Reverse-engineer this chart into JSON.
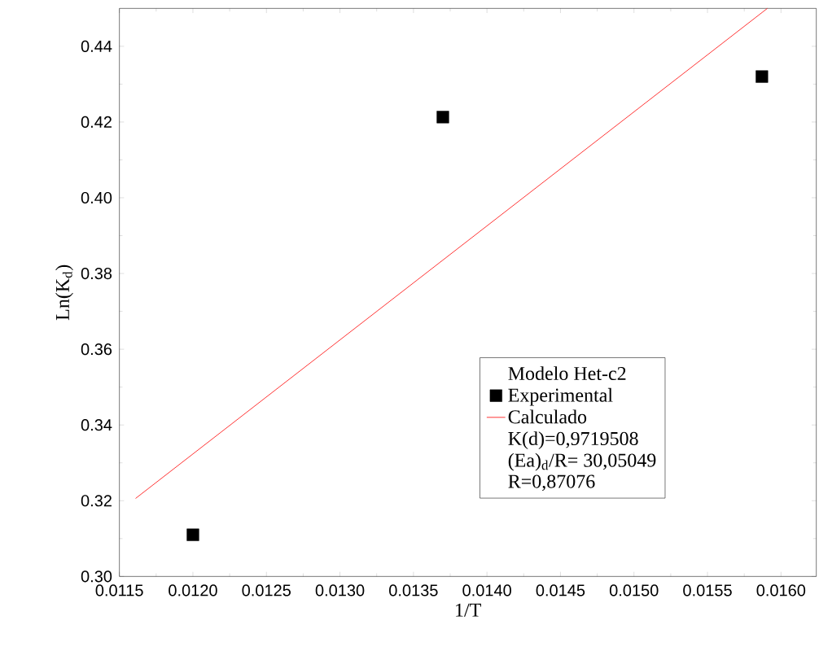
{
  "chart_data": {
    "type": "scatter",
    "xlabel": "1/T",
    "ylabel": "Ln(K$_{d}$)",
    "legend_title": "Modelo Het-c2",
    "xlim": [
      0.0115,
      0.01624
    ],
    "ylim": [
      0.3,
      0.45
    ],
    "xticks": [
      {
        "value": 0.0115,
        "label": "0.0115"
      },
      {
        "value": 0.012,
        "label": "0.0120"
      },
      {
        "value": 0.0125,
        "label": "0.0125"
      },
      {
        "value": 0.013,
        "label": "0.0130"
      },
      {
        "value": 0.0135,
        "label": "0.0135"
      },
      {
        "value": 0.014,
        "label": "0.0140"
      },
      {
        "value": 0.0145,
        "label": "0.0145"
      },
      {
        "value": 0.015,
        "label": "0.0150"
      },
      {
        "value": 0.0155,
        "label": "0.0155"
      },
      {
        "value": 0.016,
        "label": "0.0160"
      }
    ],
    "yticks": [
      {
        "value": 0.3,
        "label": "0.30"
      },
      {
        "value": 0.32,
        "label": "0.32"
      },
      {
        "value": 0.34,
        "label": "0.34"
      },
      {
        "value": 0.36,
        "label": "0.36"
      },
      {
        "value": 0.38,
        "label": "0.38"
      },
      {
        "value": 0.4,
        "label": "0.40"
      },
      {
        "value": 0.42,
        "label": "0.42"
      },
      {
        "value": 0.44,
        "label": "0.44"
      }
    ],
    "legend": "bottom right",
    "series": [
      {
        "name": "Experimental",
        "marker": "square",
        "color": "#000000",
        "x": [
          0.012,
          0.0137,
          0.01587
        ],
        "values": [
          0.311,
          0.4213,
          0.432
        ]
      },
      {
        "name": "Calculado",
        "type": "line",
        "line_style": "solid",
        "color": "#ff0000",
        "x": [
          0.01161,
          0.015907
        ],
        "values": [
          0.3206,
          0.45
        ]
      }
    ],
    "annotations": [
      "K(d)=0,9719508",
      "(Ea)$_{d}$/R= 30,05049",
      "R=0,87076"
    ]
  }
}
